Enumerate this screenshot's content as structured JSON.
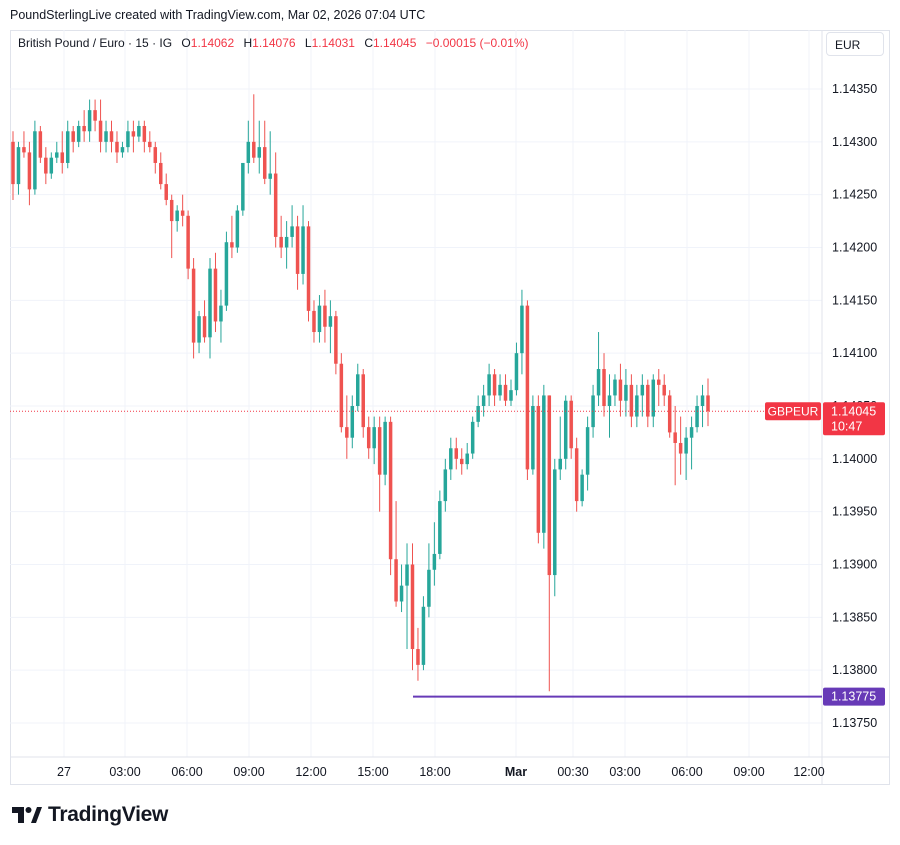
{
  "header": {
    "credit": "PoundSterlingLive created with TradingView.com, Mar 02, 2026 07:04 UTC"
  },
  "legend": {
    "symbol": "British Pound / Euro · 15 · IG",
    "o_label": "O",
    "o_value": "1.14062",
    "h_label": "H",
    "h_value": "1.14076",
    "l_label": "L",
    "l_value": "1.14031",
    "c_label": "C",
    "c_value": "1.14045",
    "change": "−0.00015 (−0.01%)"
  },
  "currency_button": "EUR",
  "price_tag": {
    "symbol": "GBPEUR",
    "price": "1.14045",
    "countdown": "10:47"
  },
  "level_tag": "1.13775",
  "logo_text": "TradingView",
  "colors": {
    "up": "#26a69a",
    "down": "#ef5350",
    "last_price": "#f23645",
    "level_line": "#673ab7"
  },
  "chart_data": {
    "type": "candlestick",
    "title": "British Pound / Euro · 15 · IG",
    "y_ticks": [
      "1.14350",
      "1.14300",
      "1.14250",
      "1.14200",
      "1.14150",
      "1.14100",
      "1.14050",
      "1.14000",
      "1.13950",
      "1.13900",
      "1.13850",
      "1.13800",
      "1.13750"
    ],
    "x_ticks": [
      "27",
      "03:00",
      "06:00",
      "09:00",
      "12:00",
      "15:00",
      "18:00",
      "Mar",
      "00:30",
      "03:00",
      "06:00",
      "09:00",
      "12:00"
    ],
    "last_price": 1.14045,
    "horizontal_level": 1.13775,
    "grid": true,
    "candles_ohlc": [
      [
        1.143,
        1.1431,
        1.14245,
        1.1426
      ],
      [
        1.1426,
        1.143,
        1.1425,
        1.14295
      ],
      [
        1.14295,
        1.1431,
        1.14285,
        1.1429
      ],
      [
        1.1429,
        1.143,
        1.1424,
        1.14255
      ],
      [
        1.14255,
        1.1432,
        1.1425,
        1.1431
      ],
      [
        1.1431,
        1.14315,
        1.1428,
        1.14285
      ],
      [
        1.14285,
        1.14295,
        1.1426,
        1.1427
      ],
      [
        1.1427,
        1.1429,
        1.14265,
        1.14285
      ],
      [
        1.14285,
        1.143,
        1.1428,
        1.1429
      ],
      [
        1.1429,
        1.1431,
        1.1427,
        1.1428
      ],
      [
        1.1428,
        1.1432,
        1.14275,
        1.1431
      ],
      [
        1.1431,
        1.14315,
        1.1429,
        1.143
      ],
      [
        1.143,
        1.1432,
        1.14295,
        1.14315
      ],
      [
        1.14315,
        1.1433,
        1.143,
        1.1431
      ],
      [
        1.1431,
        1.1434,
        1.143,
        1.1433
      ],
      [
        1.1433,
        1.1434,
        1.1431,
        1.1432
      ],
      [
        1.1432,
        1.1434,
        1.1429,
        1.143
      ],
      [
        1.143,
        1.1432,
        1.1429,
        1.1431
      ],
      [
        1.1431,
        1.1432,
        1.1429,
        1.143
      ],
      [
        1.143,
        1.1431,
        1.1428,
        1.1429
      ],
      [
        1.1429,
        1.143,
        1.14285,
        1.14295
      ],
      [
        1.14295,
        1.1432,
        1.1429,
        1.1431
      ],
      [
        1.1431,
        1.1432,
        1.1429,
        1.14305
      ],
      [
        1.14305,
        1.1432,
        1.143,
        1.14315
      ],
      [
        1.14315,
        1.1432,
        1.1429,
        1.143
      ],
      [
        1.143,
        1.1431,
        1.1429,
        1.14295
      ],
      [
        1.14295,
        1.143,
        1.1427,
        1.1428
      ],
      [
        1.1428,
        1.1429,
        1.14255,
        1.1426
      ],
      [
        1.1426,
        1.1427,
        1.1424,
        1.14245
      ],
      [
        1.14245,
        1.1425,
        1.1419,
        1.14225
      ],
      [
        1.14225,
        1.1424,
        1.14215,
        1.14235
      ],
      [
        1.14235,
        1.1425,
        1.1422,
        1.1423
      ],
      [
        1.1423,
        1.14235,
        1.1417,
        1.1418
      ],
      [
        1.1418,
        1.1419,
        1.14095,
        1.1411
      ],
      [
        1.1411,
        1.1414,
        1.141,
        1.14135
      ],
      [
        1.14135,
        1.1415,
        1.1411,
        1.14115
      ],
      [
        1.14115,
        1.1419,
        1.14095,
        1.1418
      ],
      [
        1.1418,
        1.14195,
        1.1412,
        1.1413
      ],
      [
        1.1413,
        1.1416,
        1.1411,
        1.14145
      ],
      [
        1.14145,
        1.14215,
        1.1414,
        1.14205
      ],
      [
        1.14205,
        1.1423,
        1.1419,
        1.142
      ],
      [
        1.142,
        1.1424,
        1.14195,
        1.14235
      ],
      [
        1.14235,
        1.1428,
        1.1423,
        1.1428
      ],
      [
        1.1428,
        1.1432,
        1.1427,
        1.143
      ],
      [
        1.143,
        1.14345,
        1.1428,
        1.14285
      ],
      [
        1.14285,
        1.1432,
        1.1427,
        1.14295
      ],
      [
        1.14295,
        1.1432,
        1.1426,
        1.14265
      ],
      [
        1.14265,
        1.1431,
        1.1425,
        1.1427
      ],
      [
        1.1427,
        1.1429,
        1.142,
        1.1421
      ],
      [
        1.1421,
        1.1423,
        1.1419,
        1.142
      ],
      [
        1.142,
        1.14225,
        1.1418,
        1.1421
      ],
      [
        1.1421,
        1.1424,
        1.142,
        1.1422
      ],
      [
        1.1422,
        1.1423,
        1.1416,
        1.14175
      ],
      [
        1.14175,
        1.1424,
        1.14165,
        1.1422
      ],
      [
        1.1422,
        1.14225,
        1.1413,
        1.1414
      ],
      [
        1.1414,
        1.1415,
        1.1411,
        1.1412
      ],
      [
        1.1412,
        1.14155,
        1.1411,
        1.14145
      ],
      [
        1.14145,
        1.1416,
        1.1411,
        1.14125
      ],
      [
        1.14125,
        1.1415,
        1.141,
        1.14135
      ],
      [
        1.14135,
        1.1414,
        1.1408,
        1.1409
      ],
      [
        1.1409,
        1.141,
        1.14025,
        1.1403
      ],
      [
        1.1403,
        1.1406,
        1.14,
        1.1402
      ],
      [
        1.1402,
        1.1406,
        1.1401,
        1.1405
      ],
      [
        1.1405,
        1.1409,
        1.14045,
        1.1408
      ],
      [
        1.1408,
        1.14085,
        1.1402,
        1.1403
      ],
      [
        1.1403,
        1.1404,
        1.14,
        1.1401
      ],
      [
        1.1401,
        1.1404,
        1.13995,
        1.1403
      ],
      [
        1.1403,
        1.1404,
        1.1395,
        1.13985
      ],
      [
        1.13985,
        1.1404,
        1.13975,
        1.14035
      ],
      [
        1.14035,
        1.1404,
        1.1389,
        1.13905
      ],
      [
        1.13905,
        1.1396,
        1.1386,
        1.13865
      ],
      [
        1.13865,
        1.139,
        1.13855,
        1.1388
      ],
      [
        1.1388,
        1.1392,
        1.1382,
        1.139
      ],
      [
        1.139,
        1.1392,
        1.138,
        1.1382
      ],
      [
        1.1382,
        1.1384,
        1.1379,
        1.13805
      ],
      [
        1.13805,
        1.1387,
        1.138,
        1.1386
      ],
      [
        1.1386,
        1.1392,
        1.1385,
        1.13895
      ],
      [
        1.13895,
        1.1394,
        1.1388,
        1.1391
      ],
      [
        1.1391,
        1.1397,
        1.13905,
        1.1396
      ],
      [
        1.1396,
        1.14,
        1.1395,
        1.1399
      ],
      [
        1.1399,
        1.1402,
        1.1398,
        1.1401
      ],
      [
        1.1401,
        1.1402,
        1.1399,
        1.14
      ],
      [
        1.14,
        1.1401,
        1.13985,
        1.13995
      ],
      [
        1.13995,
        1.14015,
        1.1399,
        1.14005
      ],
      [
        1.14005,
        1.1404,
        1.14,
        1.14035
      ],
      [
        1.14035,
        1.1406,
        1.1403,
        1.1405
      ],
      [
        1.1405,
        1.1407,
        1.1404,
        1.1406
      ],
      [
        1.1406,
        1.1409,
        1.1405,
        1.1408
      ],
      [
        1.1408,
        1.14085,
        1.1405,
        1.1406
      ],
      [
        1.1406,
        1.1408,
        1.14055,
        1.1407
      ],
      [
        1.1407,
        1.1408,
        1.1405,
        1.14055
      ],
      [
        1.14055,
        1.14075,
        1.1405,
        1.14065
      ],
      [
        1.14065,
        1.1411,
        1.1406,
        1.141
      ],
      [
        1.141,
        1.1416,
        1.1408,
        1.14145
      ],
      [
        1.14145,
        1.1415,
        1.1398,
        1.1399
      ],
      [
        1.1399,
        1.1406,
        1.13985,
        1.1405
      ],
      [
        1.1405,
        1.1406,
        1.1392,
        1.1393
      ],
      [
        1.1393,
        1.1407,
        1.13915,
        1.1406
      ],
      [
        1.1406,
        1.1406,
        1.1378,
        1.1389
      ],
      [
        1.1389,
        1.14,
        1.1387,
        1.1399
      ],
      [
        1.1399,
        1.1404,
        1.1398,
        1.14
      ],
      [
        1.14,
        1.1406,
        1.1399,
        1.14055
      ],
      [
        1.14055,
        1.1406,
        1.14,
        1.1401
      ],
      [
        1.1401,
        1.1402,
        1.1395,
        1.1396
      ],
      [
        1.1396,
        1.1399,
        1.13955,
        1.13985
      ],
      [
        1.13985,
        1.1404,
        1.1397,
        1.1403
      ],
      [
        1.1403,
        1.1407,
        1.1402,
        1.1406
      ],
      [
        1.1406,
        1.1412,
        1.1405,
        1.14085
      ],
      [
        1.14085,
        1.141,
        1.1404,
        1.1405
      ],
      [
        1.1405,
        1.1408,
        1.1402,
        1.1406
      ],
      [
        1.1406,
        1.1408,
        1.1405,
        1.14075
      ],
      [
        1.14075,
        1.1409,
        1.1404,
        1.14055
      ],
      [
        1.14055,
        1.14085,
        1.1404,
        1.1407
      ],
      [
        1.1407,
        1.1408,
        1.1403,
        1.1404
      ],
      [
        1.1404,
        1.1407,
        1.1403,
        1.1406
      ],
      [
        1.1406,
        1.1408,
        1.1404,
        1.1407
      ],
      [
        1.1407,
        1.14075,
        1.1403,
        1.1404
      ],
      [
        1.1404,
        1.1408,
        1.1403,
        1.14075
      ],
      [
        1.14075,
        1.14085,
        1.1405,
        1.1407
      ],
      [
        1.1407,
        1.1408,
        1.1405,
        1.1406
      ],
      [
        1.1406,
        1.14065,
        1.1402,
        1.14025
      ],
      [
        1.14025,
        1.1405,
        1.13975,
        1.14015
      ],
      [
        1.14015,
        1.1404,
        1.13985,
        1.14005
      ],
      [
        1.14005,
        1.1403,
        1.1398,
        1.1402
      ],
      [
        1.1402,
        1.1404,
        1.1399,
        1.1403
      ],
      [
        1.1403,
        1.1406,
        1.14025,
        1.1405
      ],
      [
        1.1405,
        1.1407,
        1.1403,
        1.1406
      ],
      [
        1.1406,
        1.14076,
        1.14031,
        1.14045
      ]
    ]
  }
}
